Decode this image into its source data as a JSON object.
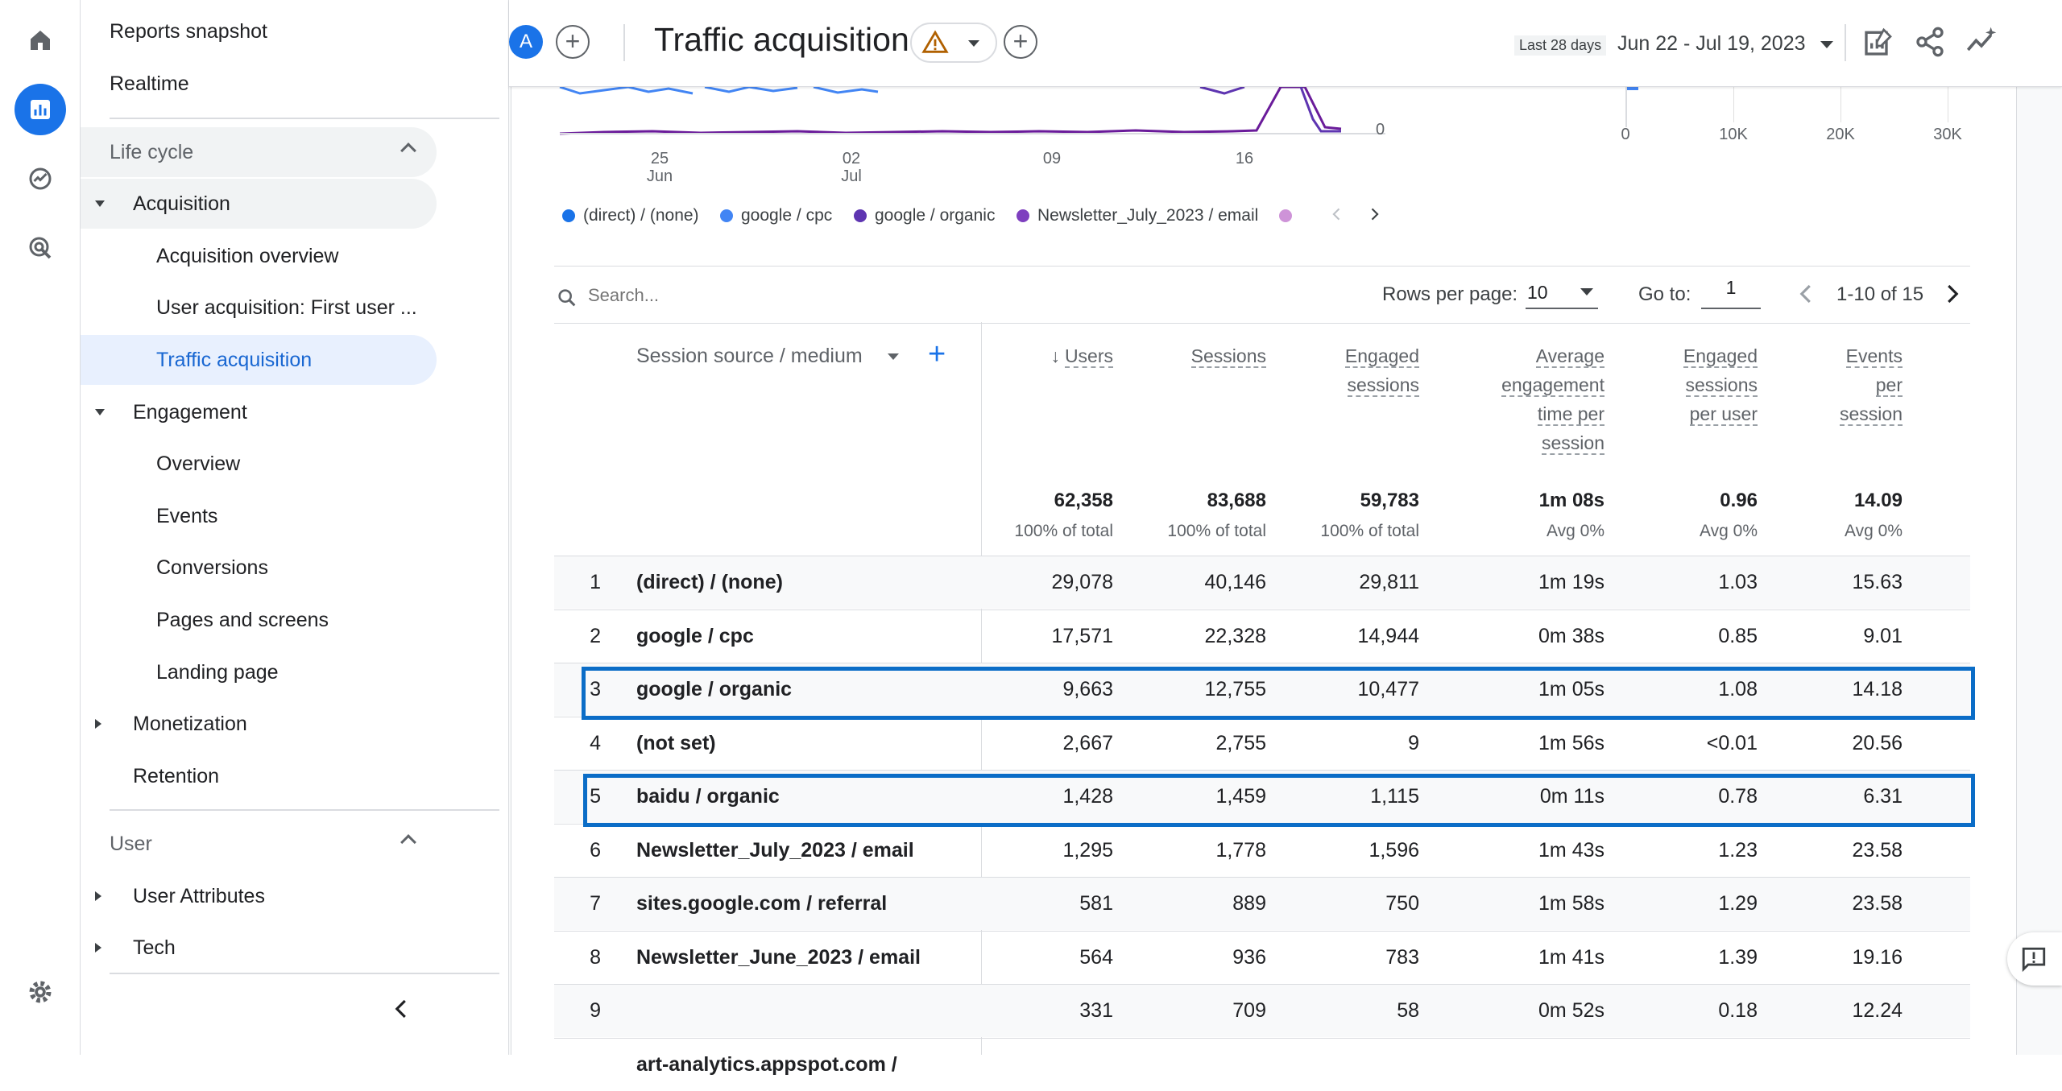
{
  "rail": {
    "items": [
      "home-icon",
      "reports-icon",
      "explore-icon",
      "advertising-icon"
    ],
    "settings": "gear-icon"
  },
  "nav": {
    "reports_snapshot": "Reports snapshot",
    "realtime": "Realtime",
    "lifecycle": "Life cycle",
    "acquisition": "Acquisition",
    "acquisition_overview": "Acquisition overview",
    "user_acquisition": "User acquisition: First user ...",
    "traffic_acquisition": "Traffic acquisition",
    "engagement": "Engagement",
    "overview": "Overview",
    "events": "Events",
    "conversions": "Conversions",
    "pages_screens": "Pages and screens",
    "landing_page": "Landing page",
    "monetization": "Monetization",
    "retention": "Retention",
    "user": "User",
    "user_attributes": "User Attributes",
    "tech": "Tech"
  },
  "header": {
    "avatar": "A",
    "title": "Traffic acquisition",
    "range_label": "Last 28 days",
    "date_range": "Jun 22 - Jul 19, 2023"
  },
  "chart": {
    "x_ticks": [
      {
        "d": "25",
        "m": "Jun"
      },
      {
        "d": "02",
        "m": "Jul"
      },
      {
        "d": "09",
        "m": ""
      },
      {
        "d": "16",
        "m": ""
      }
    ],
    "y_zero": "0",
    "bar_ticks": [
      "0",
      "10K",
      "20K",
      "30K"
    ]
  },
  "legend": [
    {
      "label": "(direct) / (none)",
      "color": "#1a73e8"
    },
    {
      "label": "google / cpc",
      "color": "#4285f4"
    },
    {
      "label": "google / organic",
      "color": "#5e35b1"
    },
    {
      "label": "Newsletter_July_2023 / email",
      "color": "#7e3fbf"
    }
  ],
  "toolbar": {
    "search_placeholder": "Search...",
    "rows_per_page_label": "Rows per page:",
    "rows_per_page": "10",
    "goto_label": "Go to:",
    "goto_value": "1",
    "pager": "1-10 of 15"
  },
  "table": {
    "dim_header": "Session source / medium",
    "headers": {
      "users": "Users",
      "sessions": "Sessions",
      "engaged1": "Engaged",
      "engaged2": "sessions",
      "avg1": "Average",
      "avg2": "engagement",
      "avg3": "time per",
      "avg4": "session",
      "epu1": "Engaged",
      "epu2": "sessions",
      "epu3": "per user",
      "eps1": "Events",
      "eps2": "per",
      "eps3": "session"
    },
    "totals": {
      "users": "62,358",
      "users_sub": "100% of total",
      "sessions": "83,688",
      "sessions_sub": "100% of total",
      "engaged": "59,783",
      "engaged_sub": "100% of total",
      "avg": "1m 08s",
      "avg_sub": "Avg 0%",
      "epu": "0.96",
      "epu_sub": "Avg 0%",
      "eps": "14.09",
      "eps_sub": "Avg 0%"
    },
    "rows": [
      {
        "n": "1",
        "src": "(direct) / (none)",
        "users": "29,078",
        "sessions": "40,146",
        "engaged": "29,811",
        "avg": "1m 19s",
        "epu": "1.03",
        "eps": "15.63"
      },
      {
        "n": "2",
        "src": "google / cpc",
        "users": "17,571",
        "sessions": "22,328",
        "engaged": "14,944",
        "avg": "0m 38s",
        "epu": "0.85",
        "eps": "9.01"
      },
      {
        "n": "3",
        "src": "google / organic",
        "users": "9,663",
        "sessions": "12,755",
        "engaged": "10,477",
        "avg": "1m 05s",
        "epu": "1.08",
        "eps": "14.18"
      },
      {
        "n": "4",
        "src": "(not set)",
        "users": "2,667",
        "sessions": "2,755",
        "engaged": "9",
        "avg": "1m 56s",
        "epu": "<0.01",
        "eps": "20.56"
      },
      {
        "n": "5",
        "src": "baidu / organic",
        "users": "1,428",
        "sessions": "1,459",
        "engaged": "1,115",
        "avg": "0m 11s",
        "epu": "0.78",
        "eps": "6.31"
      },
      {
        "n": "6",
        "src": "Newsletter_July_2023 / email",
        "users": "1,295",
        "sessions": "1,778",
        "engaged": "1,596",
        "avg": "1m 43s",
        "epu": "1.23",
        "eps": "23.58"
      },
      {
        "n": "7",
        "src": "sites.google.com / referral",
        "users": "581",
        "sessions": "889",
        "engaged": "750",
        "avg": "1m 58s",
        "epu": "1.29",
        "eps": "23.58"
      },
      {
        "n": "8",
        "src": "Newsletter_June_2023 / email",
        "users": "564",
        "sessions": "936",
        "engaged": "783",
        "avg": "1m 41s",
        "epu": "1.39",
        "eps": "19.16"
      },
      {
        "n": "9",
        "src": "",
        "users": "331",
        "sessions": "709",
        "engaged": "58",
        "avg": "0m 52s",
        "epu": "0.18",
        "eps": "12.24"
      },
      {
        "n": "",
        "src": "art-analytics.appspot.com /",
        "users": "",
        "sessions": "",
        "engaged": "",
        "avg": "",
        "epu": "",
        "eps": ""
      }
    ]
  },
  "colors": {
    "accent": "#1a73e8",
    "highlight": "#0b6dc7"
  }
}
